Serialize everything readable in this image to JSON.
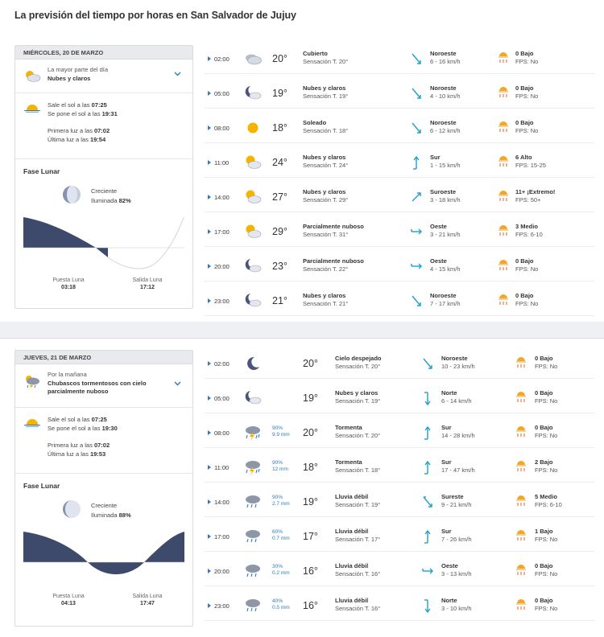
{
  "page_title": "La previsión del tiempo por horas en San Salvador de Jujuy",
  "days": [
    {
      "date": "MIÉRCOLES, 20 DE MARZO",
      "summary_label": "La mayor parte del día",
      "summary_value": "Nubes y claros",
      "summary_icon": "partly-cloudy-icon",
      "sunrise_text": "Sale el sol a las",
      "sunrise": "07:25",
      "sunset_text": "Se pone el sol a las",
      "sunset": "19:31",
      "first_light_text": "Primera luz a las",
      "first_light": "07:02",
      "last_light_text": "Última luz a las",
      "last_light": "19:54",
      "moon_title": "Fase Lunar",
      "moon_phase": "Creciente",
      "moon_illum_text": "Iluminada",
      "moon_illum": "82%",
      "moonset_label": "Puesta Luna",
      "moonset": "03:18",
      "moonrise_label": "Salida Luna",
      "moonrise": "17:12",
      "hours": [
        {
          "hour": "02:00",
          "icon": "cloudy-night-icon",
          "prec": "",
          "prec_mm": "",
          "temp": "20°",
          "cond": "Cubierto",
          "feel": "Sensación T. 20°",
          "wind_icon": "wind-nw-icon",
          "wind_dir": "Noroeste",
          "wind_speed": "6 - 16 km/h",
          "uv": "0 Bajo",
          "fps": "FPS: No"
        },
        {
          "hour": "05:00",
          "icon": "moon-cloud-icon",
          "prec": "",
          "prec_mm": "",
          "temp": "19°",
          "cond": "Nubes y claros",
          "feel": "Sensación T. 19°",
          "wind_icon": "wind-nw-icon",
          "wind_dir": "Noroeste",
          "wind_speed": "4 - 10 km/h",
          "uv": "0 Bajo",
          "fps": "FPS: No"
        },
        {
          "hour": "08:00",
          "icon": "sun-icon",
          "prec": "",
          "prec_mm": "",
          "temp": "18°",
          "cond": "Soleado",
          "feel": "Sensación T. 18°",
          "wind_icon": "wind-nw-icon",
          "wind_dir": "Noroeste",
          "wind_speed": "6 - 12 km/h",
          "uv": "0 Bajo",
          "fps": "FPS: No"
        },
        {
          "hour": "11:00",
          "icon": "sun-cloud-icon",
          "prec": "",
          "prec_mm": "",
          "temp": "24°",
          "cond": "Nubes y claros",
          "feel": "Sensación T. 24°",
          "wind_icon": "wind-s-icon",
          "wind_dir": "Sur",
          "wind_speed": "1 - 15 km/h",
          "uv": "6 Alto",
          "fps": "FPS: 15-25"
        },
        {
          "hour": "14:00",
          "icon": "sun-cloud-icon",
          "prec": "",
          "prec_mm": "",
          "temp": "27°",
          "cond": "Nubes y claros",
          "feel": "Sensación T. 29°",
          "wind_icon": "wind-sw-icon",
          "wind_dir": "Suroeste",
          "wind_speed": "3 - 18 km/h",
          "uv": "11+ ¡Extremo!",
          "fps": "FPS: 50+"
        },
        {
          "hour": "17:00",
          "icon": "sun-cloud-icon",
          "prec": "",
          "prec_mm": "",
          "temp": "29°",
          "cond": "Parcialmente nuboso",
          "feel": "Sensación T. 31°",
          "wind_icon": "wind-w-icon",
          "wind_dir": "Oeste",
          "wind_speed": "3 - 21 km/h",
          "uv": "3 Medio",
          "fps": "FPS: 6-10"
        },
        {
          "hour": "20:00",
          "icon": "moon-cloud-icon",
          "prec": "",
          "prec_mm": "",
          "temp": "23°",
          "cond": "Parcialmente nuboso",
          "feel": "Sensación T. 22°",
          "wind_icon": "wind-w-icon",
          "wind_dir": "Oeste",
          "wind_speed": "4 - 15 km/h",
          "uv": "0 Bajo",
          "fps": "FPS: No"
        },
        {
          "hour": "23:00",
          "icon": "moon-cloud-icon",
          "prec": "",
          "prec_mm": "",
          "temp": "21°",
          "cond": "Nubes y claros",
          "feel": "Sensación T. 21°",
          "wind_icon": "wind-nw-icon",
          "wind_dir": "Noroeste",
          "wind_speed": "7 - 17 km/h",
          "uv": "0 Bajo",
          "fps": "FPS: No"
        }
      ]
    },
    {
      "date": "JUEVES, 21 DE MARZO",
      "summary_label": "Por la mañana",
      "summary_value": "Chubascos tormentosos con cielo parcialmente nuboso",
      "summary_icon": "storm-sun-icon",
      "sunrise_text": "Sale el sol a las",
      "sunrise": "07:25",
      "sunset_text": "Se pone el sol a las",
      "sunset": "19:30",
      "first_light_text": "Primera luz a las",
      "first_light": "07:02",
      "last_light_text": "Última luz a las",
      "last_light": "19:53",
      "moon_title": "Fase Lunar",
      "moon_phase": "Creciente",
      "moon_illum_text": "Iluminada",
      "moon_illum": "88%",
      "moonset_label": "Puesta Luna",
      "moonset": "04:13",
      "moonrise_label": "Salida Luna",
      "moonrise": "17:47",
      "hours": [
        {
          "hour": "02:00",
          "icon": "moon-icon",
          "prec": "",
          "prec_mm": "",
          "temp": "20°",
          "cond": "Cielo despejado",
          "feel": "Sensación T. 20°",
          "wind_icon": "wind-nw-icon",
          "wind_dir": "Noroeste",
          "wind_speed": "10 - 23 km/h",
          "uv": "0 Bajo",
          "fps": "FPS: No"
        },
        {
          "hour": "05:00",
          "icon": "moon-cloud-icon",
          "prec": "",
          "prec_mm": "",
          "temp": "19°",
          "cond": "Nubes y claros",
          "feel": "Sensación T. 19°",
          "wind_icon": "wind-n-icon",
          "wind_dir": "Norte",
          "wind_speed": "6 - 14 km/h",
          "uv": "0 Bajo",
          "fps": "FPS: No"
        },
        {
          "hour": "08:00",
          "icon": "storm-icon",
          "prec": "90%",
          "prec_mm": "9.9 mm",
          "temp": "20°",
          "cond": "Tormenta",
          "feel": "Sensación T. 20°",
          "wind_icon": "wind-s-icon",
          "wind_dir": "Sur",
          "wind_speed": "14 - 28 km/h",
          "uv": "0 Bajo",
          "fps": "FPS: No"
        },
        {
          "hour": "11:00",
          "icon": "storm-icon",
          "prec": "90%",
          "prec_mm": "12 mm",
          "temp": "18°",
          "cond": "Tormenta",
          "feel": "Sensación T. 18°",
          "wind_icon": "wind-s-icon",
          "wind_dir": "Sur",
          "wind_speed": "17 - 47 km/h",
          "uv": "2 Bajo",
          "fps": "FPS: No"
        },
        {
          "hour": "14:00",
          "icon": "rain-icon",
          "prec": "90%",
          "prec_mm": "2.7 mm",
          "temp": "19°",
          "cond": "Lluvia débil",
          "feel": "Sensación T. 19°",
          "wind_icon": "wind-se-icon",
          "wind_dir": "Sureste",
          "wind_speed": "9 - 21 km/h",
          "uv": "5 Medio",
          "fps": "FPS: 6-10"
        },
        {
          "hour": "17:00",
          "icon": "rain-icon",
          "prec": "60%",
          "prec_mm": "0.7 mm",
          "temp": "17°",
          "cond": "Lluvia débil",
          "feel": "Sensación T. 17°",
          "wind_icon": "wind-s-icon",
          "wind_dir": "Sur",
          "wind_speed": "7 - 26 km/h",
          "uv": "1 Bajo",
          "fps": "FPS: No"
        },
        {
          "hour": "20:00",
          "icon": "rain-icon",
          "prec": "30%",
          "prec_mm": "0.2 mm",
          "temp": "16°",
          "cond": "Lluvia débil",
          "feel": "Sensación T. 16°",
          "wind_icon": "wind-w-icon",
          "wind_dir": "Oeste",
          "wind_speed": "3 - 13 km/h",
          "uv": "0 Bajo",
          "fps": "FPS: No"
        },
        {
          "hour": "23:00",
          "icon": "rain-icon",
          "prec": "40%",
          "prec_mm": "0.5 mm",
          "temp": "16°",
          "cond": "Lluvia débil",
          "feel": "Sensación T. 16°",
          "wind_icon": "wind-n-icon",
          "wind_dir": "Norte",
          "wind_speed": "3 - 10 km/h",
          "uv": "0 Bajo",
          "fps": "FPS: No"
        }
      ]
    }
  ],
  "colors": {
    "accent": "#2e7bbf",
    "wind_arrow": "#1fa0c9",
    "uv_sun": "#f5a623",
    "chart_night": "#3d4a6b",
    "header_bg": "#e8eaed"
  }
}
